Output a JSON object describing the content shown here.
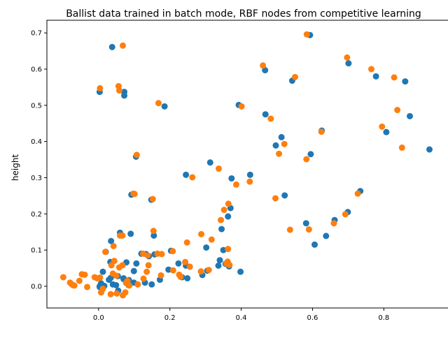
{
  "chart_data": {
    "type": "scatter",
    "title": "Ballist data trained in batch mode, RBF nodes from competitive learning",
    "xlabel": "",
    "ylabel": "height",
    "xlim": [
      -0.145,
      0.98
    ],
    "ylim": [
      -0.06,
      0.735
    ],
    "xticks": [
      0.0,
      0.2,
      0.4,
      0.6,
      0.8
    ],
    "xtick_labels": [
      "0.0",
      "0.2",
      "0.4",
      "0.6",
      "0.8"
    ],
    "yticks": [
      0.0,
      0.1,
      0.2,
      0.3,
      0.4,
      0.5,
      0.6,
      0.7
    ],
    "ytick_labels": [
      "0.0",
      "0.1",
      "0.2",
      "0.3",
      "0.4",
      "0.5",
      "0.6",
      "0.7"
    ],
    "grid": false,
    "legend": false,
    "series": [
      {
        "color": "#1f77b4",
        "points": [
          [
            0.003,
            0.537
          ],
          [
            0.072,
            0.537
          ],
          [
            0.072,
            0.527
          ],
          [
            0.038,
            0.661
          ],
          [
            0.185,
            0.497
          ],
          [
            0.105,
            0.358
          ],
          [
            0.148,
            0.239
          ],
          [
            0.092,
            0.253
          ],
          [
            0.245,
            0.308
          ],
          [
            0.313,
            0.342
          ],
          [
            0.373,
            0.298
          ],
          [
            0.425,
            0.308
          ],
          [
            0.393,
            0.501
          ],
          [
            0.467,
            0.597
          ],
          [
            0.468,
            0.475
          ],
          [
            0.513,
            0.412
          ],
          [
            0.497,
            0.389
          ],
          [
            0.543,
            0.568
          ],
          [
            0.593,
            0.694
          ],
          [
            0.595,
            0.365
          ],
          [
            0.626,
            0.43
          ],
          [
            0.701,
            0.616
          ],
          [
            0.778,
            0.58
          ],
          [
            0.807,
            0.426
          ],
          [
            0.86,
            0.566
          ],
          [
            0.873,
            0.47
          ],
          [
            0.928,
            0.378
          ],
          [
            0.734,
            0.263
          ],
          [
            0.699,
            0.205
          ],
          [
            0.662,
            0.183
          ],
          [
            0.638,
            0.139
          ],
          [
            0.606,
            0.115
          ],
          [
            0.582,
            0.174
          ],
          [
            0.522,
            0.251
          ],
          [
            0.37,
            0.216
          ],
          [
            0.363,
            0.193
          ],
          [
            0.345,
            0.158
          ],
          [
            0.35,
            0.1
          ],
          [
            0.366,
            0.055
          ],
          [
            0.356,
            0.062
          ],
          [
            0.34,
            0.072
          ],
          [
            0.336,
            0.057
          ],
          [
            0.305,
            0.043
          ],
          [
            0.291,
            0.031
          ],
          [
            0.302,
            0.107
          ],
          [
            0.398,
            0.04
          ],
          [
            0.249,
            0.022
          ],
          [
            0.245,
            0.057
          ],
          [
            0.224,
            0.063
          ],
          [
            0.234,
            0.025
          ],
          [
            0.203,
            0.098
          ],
          [
            0.196,
            0.046
          ],
          [
            0.172,
            0.018
          ],
          [
            0.157,
            0.088
          ],
          [
            0.155,
            0.14
          ],
          [
            0.133,
            0.089
          ],
          [
            0.141,
            0.083
          ],
          [
            0.12,
            0.09
          ],
          [
            0.13,
            0.01
          ],
          [
            0.149,
            0.005
          ],
          [
            0.106,
            0.063
          ],
          [
            0.099,
            0.042
          ],
          [
            0.099,
            0.01
          ],
          [
            0.09,
            0.145
          ],
          [
            0.085,
            0.017
          ],
          [
            0.084,
            0.003
          ],
          [
            0.078,
            0.066
          ],
          [
            0.07,
            0.02
          ],
          [
            0.06,
            0.148
          ],
          [
            0.054,
            0.028
          ],
          [
            0.049,
            0.003
          ],
          [
            0.04,
            0.005
          ],
          [
            0.035,
            0.125
          ],
          [
            0.033,
            0.067
          ],
          [
            0.034,
            0.023
          ],
          [
            0.029,
            0.018
          ],
          [
            0.02,
            0.095
          ],
          [
            0.016,
            0.001
          ],
          [
            0.012,
            0.04
          ],
          [
            0.007,
            0.008
          ],
          [
            0.003,
            0.0
          ],
          [
            0.003,
            -0.002
          ],
          [
            0.055,
            -0.012
          ],
          [
            0.07,
            0.022
          ]
        ]
      },
      {
        "color": "#ff7f0e",
        "points": [
          [
            0.004,
            0.547
          ],
          [
            0.056,
            0.553
          ],
          [
            0.058,
            0.541
          ],
          [
            0.068,
            0.665
          ],
          [
            0.168,
            0.506
          ],
          [
            0.107,
            0.363
          ],
          [
            0.152,
            0.241
          ],
          [
            0.101,
            0.255
          ],
          [
            0.263,
            0.301
          ],
          [
            0.337,
            0.325
          ],
          [
            0.386,
            0.281
          ],
          [
            0.424,
            0.289
          ],
          [
            0.401,
            0.497
          ],
          [
            0.461,
            0.61
          ],
          [
            0.483,
            0.463
          ],
          [
            0.521,
            0.393
          ],
          [
            0.506,
            0.366
          ],
          [
            0.551,
            0.578
          ],
          [
            0.584,
            0.696
          ],
          [
            0.583,
            0.351
          ],
          [
            0.625,
            0.427
          ],
          [
            0.697,
            0.632
          ],
          [
            0.765,
            0.6
          ],
          [
            0.795,
            0.441
          ],
          [
            0.829,
            0.577
          ],
          [
            0.838,
            0.487
          ],
          [
            0.851,
            0.383
          ],
          [
            0.727,
            0.256
          ],
          [
            0.692,
            0.199
          ],
          [
            0.66,
            0.174
          ],
          [
            0.59,
            0.157
          ],
          [
            0.537,
            0.156
          ],
          [
            0.496,
            0.243
          ],
          [
            0.352,
            0.211
          ],
          [
            0.364,
            0.228
          ],
          [
            0.343,
            0.183
          ],
          [
            0.363,
            0.103
          ],
          [
            0.362,
            0.068
          ],
          [
            0.358,
            0.063
          ],
          [
            0.367,
            0.059
          ],
          [
            0.317,
            0.129
          ],
          [
            0.288,
            0.144
          ],
          [
            0.309,
            0.045
          ],
          [
            0.287,
            0.041
          ],
          [
            0.248,
            0.121
          ],
          [
            0.256,
            0.054
          ],
          [
            0.243,
            0.067
          ],
          [
            0.226,
            0.032
          ],
          [
            0.23,
            0.026
          ],
          [
            0.208,
            0.097
          ],
          [
            0.209,
            0.044
          ],
          [
            0.175,
            0.03
          ],
          [
            0.177,
            0.089
          ],
          [
            0.165,
            0.09
          ],
          [
            0.154,
            0.153
          ],
          [
            0.138,
            0.085
          ],
          [
            0.14,
            0.058
          ],
          [
            0.135,
            0.04
          ],
          [
            0.126,
            0.021
          ],
          [
            0.125,
            0.09
          ],
          [
            0.11,
            0.005
          ],
          [
            0.098,
            0.256
          ],
          [
            0.086,
            0.002
          ],
          [
            0.081,
            0.015
          ],
          [
            0.077,
            0.009
          ],
          [
            0.075,
            -0.017
          ],
          [
            0.068,
            -0.025
          ],
          [
            0.067,
            0.058
          ],
          [
            0.067,
            0.14
          ],
          [
            0.06,
            0.14
          ],
          [
            0.058,
            0.052
          ],
          [
            0.051,
            -0.02
          ],
          [
            0.05,
            0.029
          ],
          [
            0.044,
            0.07
          ],
          [
            0.042,
            0.111
          ],
          [
            0.04,
            0.035
          ],
          [
            0.036,
            0.058
          ],
          [
            0.034,
            -0.022
          ],
          [
            0.019,
            0.095
          ],
          [
            0.012,
            -0.007
          ],
          [
            0.007,
            -0.017
          ],
          [
            0.004,
            0.024
          ],
          [
            -0.004,
            0.022
          ],
          [
            -0.011,
            0.025
          ],
          [
            -0.032,
            -0.002
          ],
          [
            -0.039,
            0.032
          ],
          [
            -0.047,
            0.033
          ],
          [
            -0.054,
            0.015
          ],
          [
            -0.068,
            0.002
          ],
          [
            -0.072,
            0.003
          ],
          [
            -0.076,
            0.006
          ],
          [
            -0.08,
            0.01
          ],
          [
            -0.099,
            0.025
          ]
        ]
      }
    ]
  }
}
